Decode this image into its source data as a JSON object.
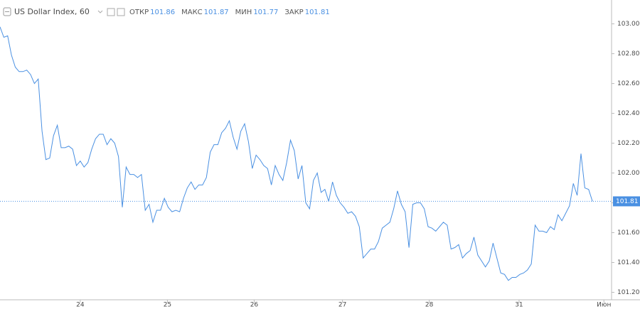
{
  "chart_data": {
    "type": "line",
    "title": "US Dollar Index, 60",
    "ohlc": [
      {
        "label": "ОТКР",
        "value": 101.86
      },
      {
        "label": "МАКС",
        "value": 101.87
      },
      {
        "label": "МИН",
        "value": 101.77
      },
      {
        "label": "ЗАКР",
        "value": 101.81
      }
    ],
    "series": [
      {
        "color": "#4a90e2",
        "values": [
          102.98,
          102.91,
          102.92,
          102.79,
          102.71,
          102.68,
          102.68,
          102.69,
          102.66,
          102.6,
          102.63,
          102.28,
          102.09,
          102.1,
          102.25,
          102.32,
          102.17,
          102.17,
          102.18,
          102.16,
          102.05,
          102.08,
          102.04,
          102.07,
          102.16,
          102.23,
          102.26,
          102.26,
          102.19,
          102.23,
          102.2,
          102.11,
          101.77,
          102.04,
          101.99,
          101.99,
          101.97,
          101.99,
          101.75,
          101.79,
          101.67,
          101.75,
          101.75,
          101.83,
          101.77,
          101.74,
          101.75,
          101.74,
          101.83,
          101.9,
          101.94,
          101.89,
          101.92,
          101.92,
          101.97,
          102.14,
          102.19,
          102.19,
          102.27,
          102.3,
          102.35,
          102.24,
          102.16,
          102.28,
          102.33,
          102.21,
          102.03,
          102.12,
          102.09,
          102.05,
          102.03,
          101.92,
          102.05,
          101.99,
          101.95,
          102.07,
          102.22,
          102.15,
          101.96,
          102.05,
          101.8,
          101.76,
          101.95,
          102.0,
          101.87,
          101.89,
          101.81,
          101.94,
          101.85,
          101.8,
          101.77,
          101.73,
          101.74,
          101.71,
          101.64,
          101.43,
          101.46,
          101.49,
          101.49,
          101.54,
          101.63,
          101.65,
          101.67,
          101.76,
          101.88,
          101.79,
          101.74,
          101.5,
          101.79,
          101.8,
          101.8,
          101.76,
          101.64,
          101.63,
          101.61,
          101.64,
          101.67,
          101.65,
          101.49,
          101.5,
          101.52,
          101.43,
          101.46,
          101.48,
          101.57,
          101.45,
          101.41,
          101.37,
          101.41,
          101.53,
          101.43,
          101.33,
          101.32,
          101.28,
          101.3,
          101.3,
          101.32,
          101.33,
          101.35,
          101.39,
          101.65,
          101.61,
          101.61,
          101.6,
          101.64,
          101.62,
          101.72,
          101.68,
          101.73,
          101.78,
          101.93,
          101.85,
          102.13,
          101.9,
          101.89,
          101.81
        ]
      }
    ],
    "last_price": 101.81,
    "xlim": [
      0,
      160
    ],
    "xticks": [
      {
        "value": 21,
        "label": "24"
      },
      {
        "value": 43.8,
        "label": "25"
      },
      {
        "value": 66.5,
        "label": "26"
      },
      {
        "value": 89.6,
        "label": "27"
      },
      {
        "value": 112.3,
        "label": "28"
      },
      {
        "value": 135.8,
        "label": "31"
      },
      {
        "value": 158,
        "label": "Июн"
      }
    ],
    "ylim": [
      101.15,
      103.16
    ],
    "yticks": [
      {
        "value": 101.2,
        "label": "101.20"
      },
      {
        "value": 101.4,
        "label": "101.40"
      },
      {
        "value": 101.6,
        "label": "101.60"
      },
      {
        "value": 101.8,
        "label": "101.80"
      },
      {
        "value": 102.0,
        "label": "102.00"
      },
      {
        "value": 102.2,
        "label": "102.20"
      },
      {
        "value": 102.4,
        "label": "102.40"
      },
      {
        "value": 102.6,
        "label": "102.60"
      },
      {
        "value": 102.8,
        "label": "102.80"
      },
      {
        "value": 103.0,
        "label": "103.00"
      }
    ],
    "grid": false
  }
}
